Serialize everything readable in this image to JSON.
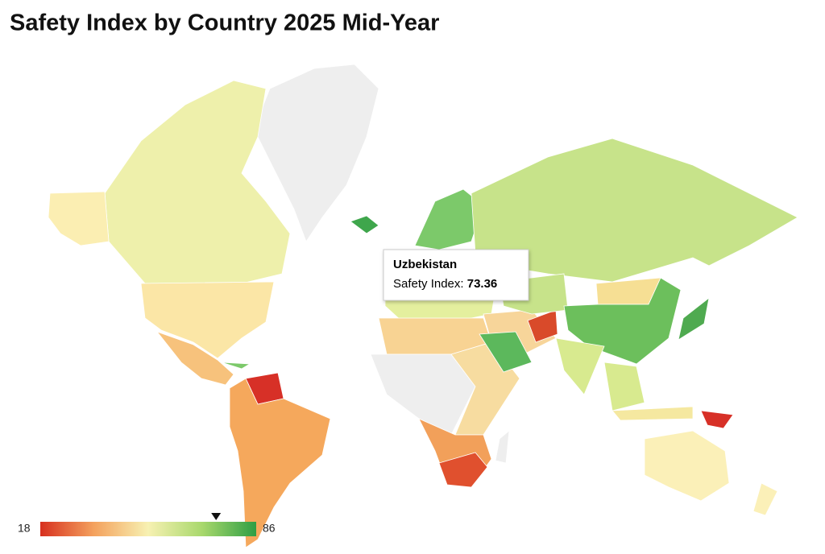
{
  "title": "Safety Index by Country 2025 Mid-Year",
  "tooltip": {
    "country": "Uzbekistan",
    "label": "Safety Index:",
    "value": 73.36
  },
  "legend": {
    "min": 18,
    "max": 86
  }
}
